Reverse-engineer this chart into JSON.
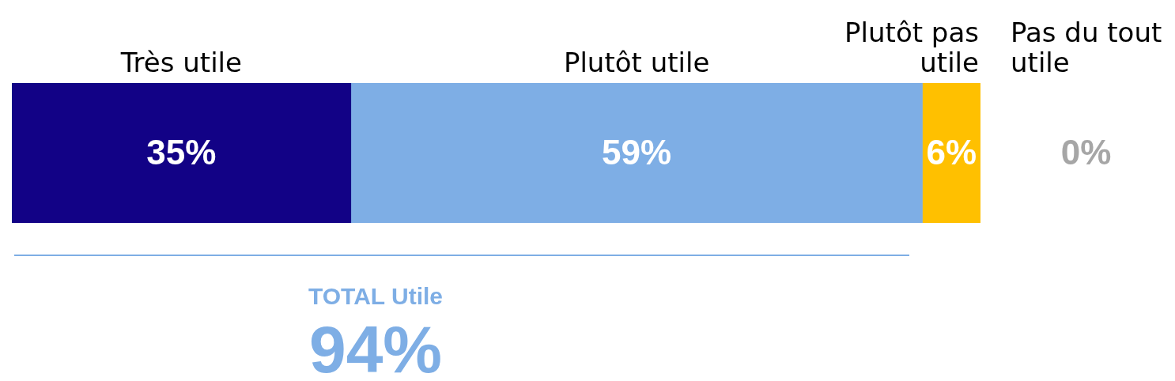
{
  "chart_data": {
    "type": "bar",
    "orientation": "horizontal",
    "stacked": true,
    "categories": [
      null
    ],
    "tick_labels": false,
    "series": [
      {
        "name": "Très utile",
        "color": "#120286",
        "values": [
          35
        ],
        "value_labels": [
          "35%"
        ]
      },
      {
        "name": "Plutôt utile",
        "color": "#7eaee5",
        "values": [
          59
        ],
        "value_labels": [
          "59%"
        ]
      },
      {
        "name": "Plutôt pas utile",
        "color": "#ffc000",
        "values": [
          6
        ],
        "value_labels": [
          "6%"
        ]
      },
      {
        "name": "Pas du tout utile",
        "color": "#a6a6a6",
        "values": [
          0
        ],
        "value_labels": [
          "0%"
        ]
      }
    ],
    "annotations": [
      "TOTAL Utile",
      "94%"
    ]
  }
}
